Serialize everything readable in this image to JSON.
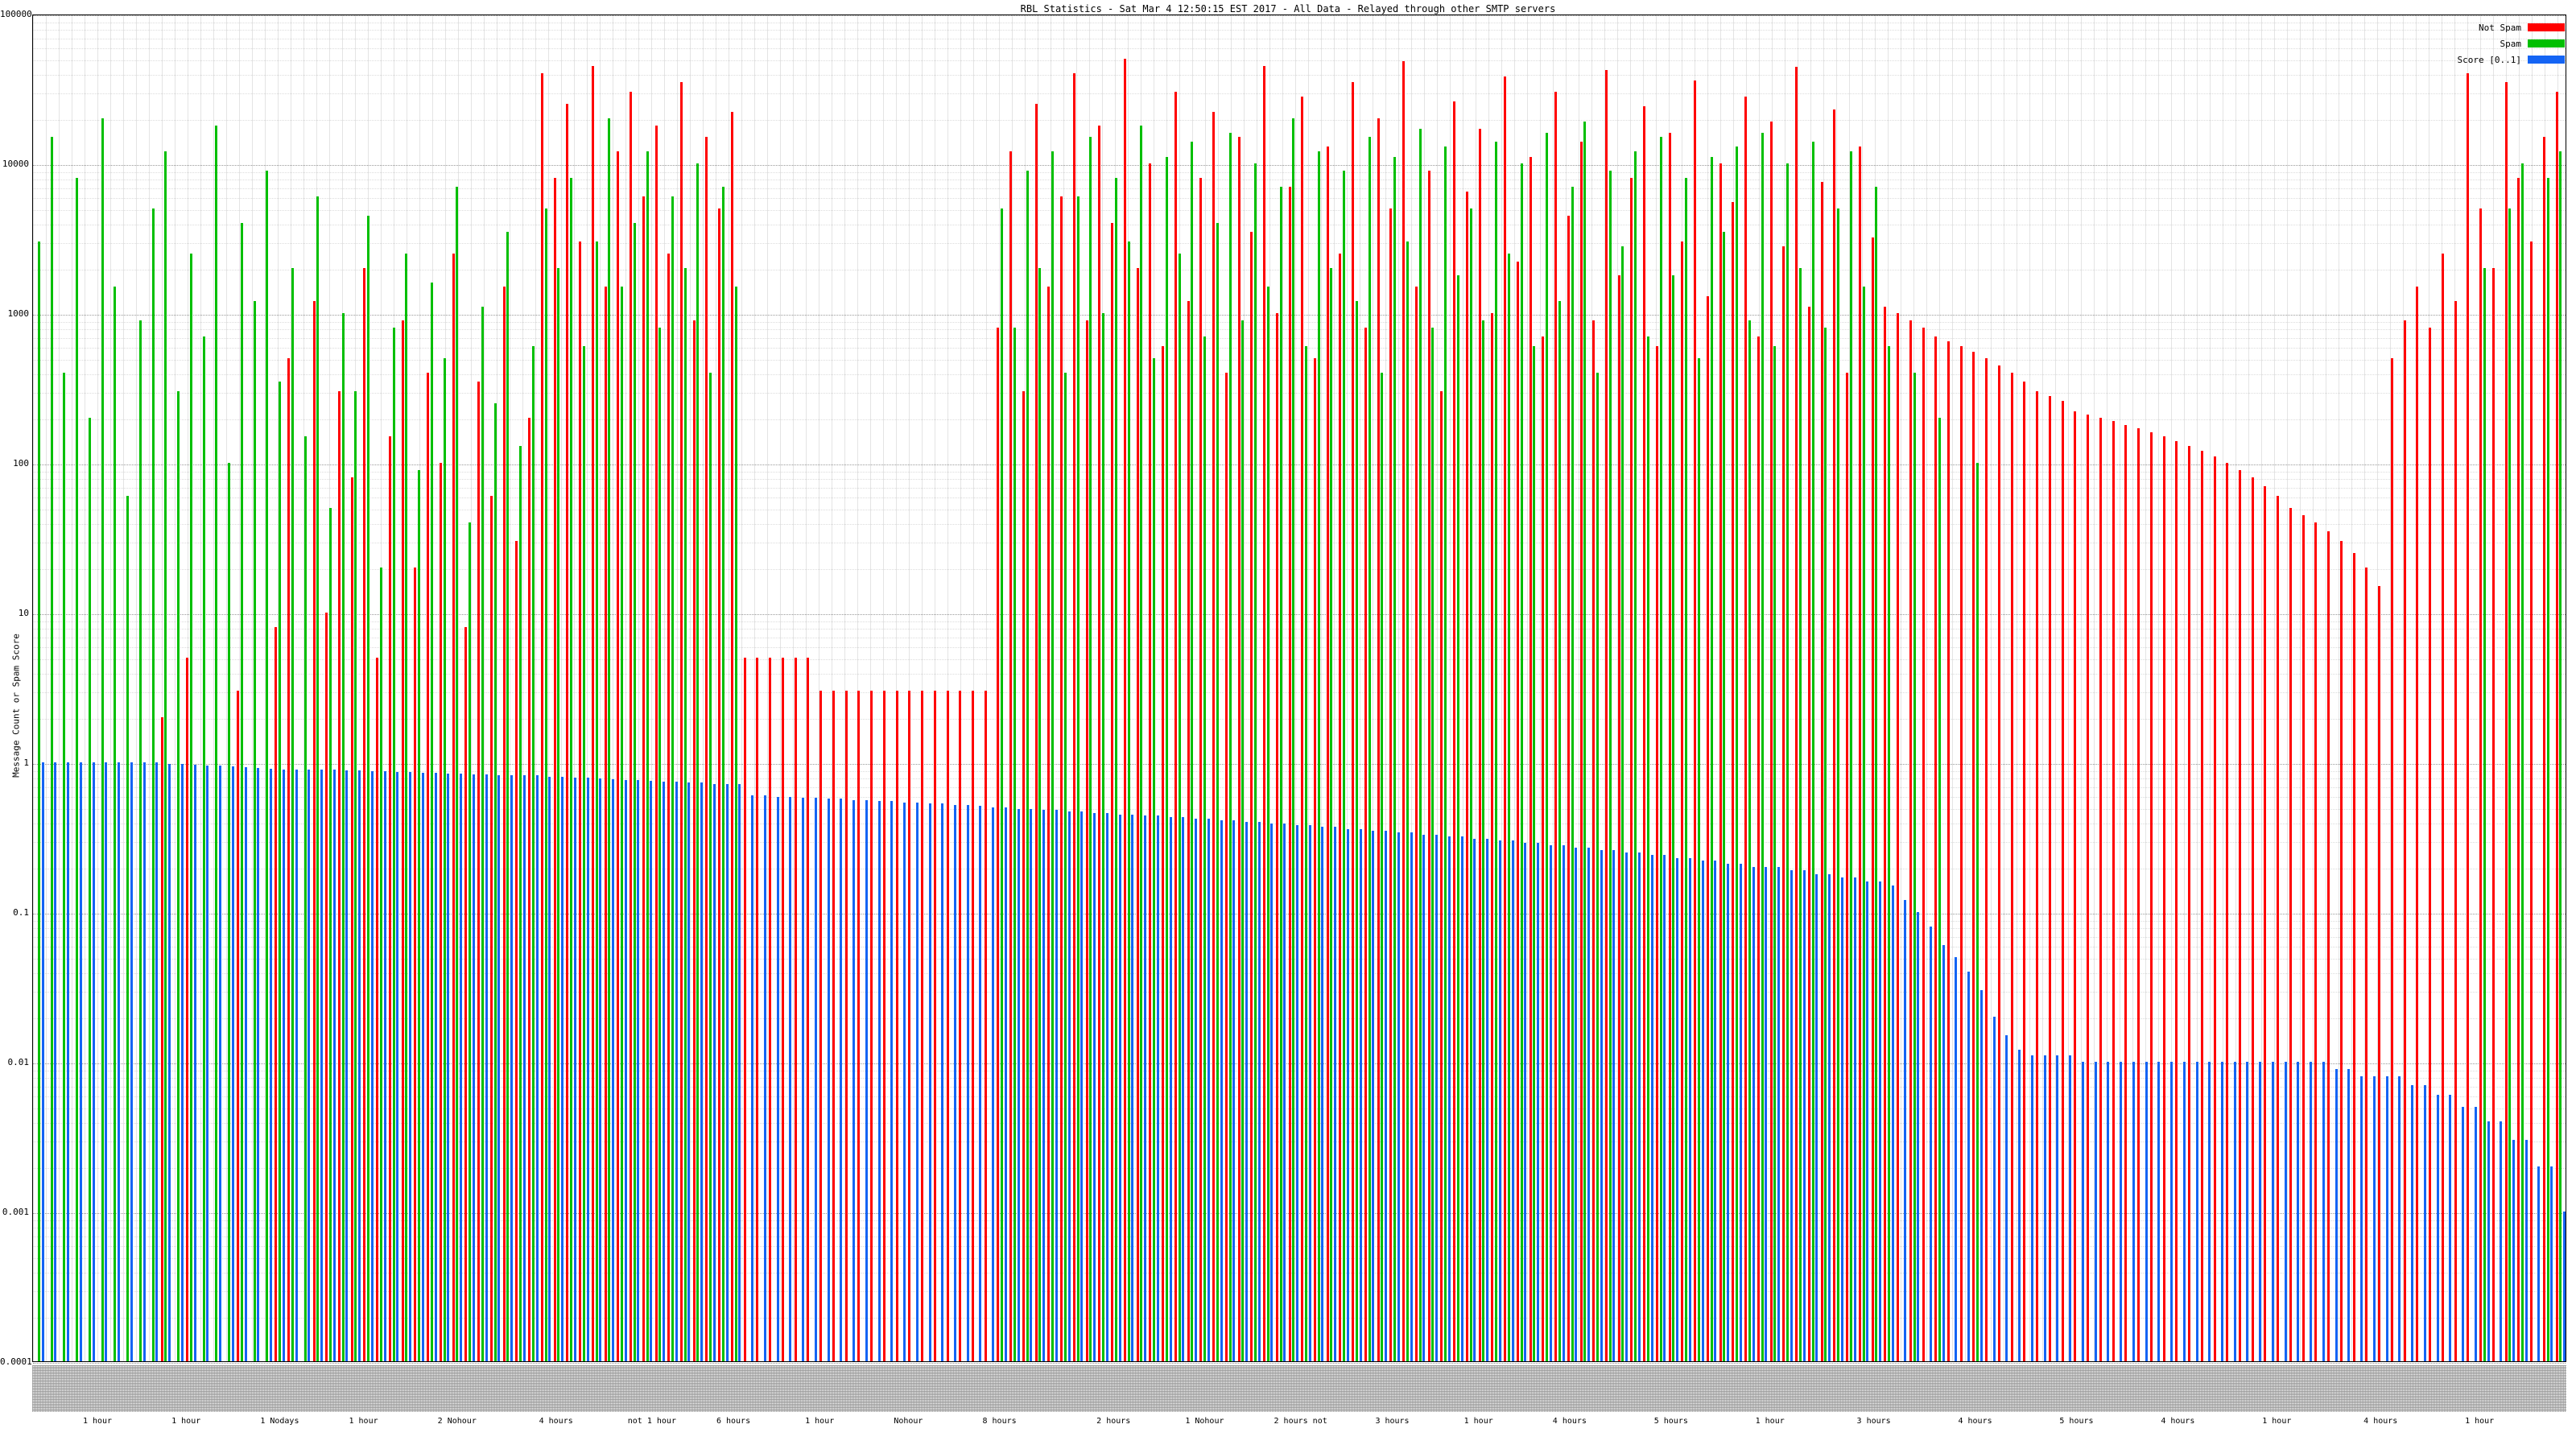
{
  "chart": {
    "title": "RBL Statistics - Sat Mar 4 12:50:15 EST 2017 - All Data - Relayed through other SMTP servers",
    "ylabel": "Message Count or Spam Score"
  },
  "chart_data": {
    "type": "bar",
    "bar_style": "impulses",
    "title": "RBL Statistics - Sat Mar 4 12:50:15 EST 2017 - All Data - Relayed through other SMTP servers",
    "xlabel": "",
    "ylabel": "Message Count or Spam Score",
    "yscale": "log",
    "ylim": [
      0.0001,
      100000
    ],
    "ytick_labels": [
      "100000",
      "10000",
      "1000",
      "100",
      "10",
      "1",
      "0.1",
      "0.01",
      "0.001",
      "0.0001"
    ],
    "grid": true,
    "legend_position": "top-right",
    "x_labels_note": "hundreds of tiny illegible RBL hostname labels along the x-axis, sorted by descending score",
    "legend": [
      {
        "name": "Not Spam",
        "color": "#ff0000"
      },
      {
        "name": "Spam",
        "color": "#00bf00"
      },
      {
        "name": "Score [0..1]",
        "color": "#1464f4"
      }
    ],
    "series": [
      {
        "name": "Not Spam",
        "color": "#ff0000",
        "values": [
          0,
          0,
          0,
          0,
          0,
          0,
          0,
          0,
          0,
          0,
          2,
          0,
          5,
          0,
          0,
          0,
          3,
          0,
          0,
          8,
          500,
          0,
          1200,
          10,
          300,
          80,
          2000,
          5,
          150,
          900,
          20,
          400,
          100,
          2500,
          8,
          350,
          60,
          1500,
          30,
          200,
          40000,
          8000,
          25000,
          3000,
          45000,
          1500,
          12000,
          30000,
          6000,
          18000,
          2500,
          35000,
          900,
          15000,
          5000,
          22000,
          5,
          5,
          5,
          5,
          5,
          5,
          3,
          3,
          3,
          3,
          3,
          3,
          3,
          3,
          3,
          3,
          3,
          3,
          3,
          3,
          800,
          12000,
          300,
          25000,
          1500,
          6000,
          40000,
          900,
          18000,
          4000,
          50000,
          2000,
          10000,
          600,
          30000,
          1200,
          8000,
          22000,
          400,
          15000,
          3500,
          45000,
          1000,
          7000,
          28000,
          500,
          13000,
          2500,
          35000,
          800,
          20000,
          5000,
          48000,
          1500,
          9000,
          300,
          26000,
          6500,
          17000,
          1000,
          38000,
          2200,
          11000,
          700,
          30000,
          4500,
          14000,
          900,
          42000,
          1800,
          8000,
          24000,
          600,
          16000,
          3000,
          36000,
          1300,
          10000,
          5500,
          28000,
          700,
          19000,
          2800,
          44000,
          1100,
          7500,
          23000,
          400,
          13000,
          3200,
          1100,
          1000,
          900,
          800,
          700,
          650,
          600,
          550,
          500,
          450,
          400,
          350,
          300,
          280,
          260,
          220,
          210,
          200,
          190,
          180,
          170,
          160,
          150,
          140,
          130,
          120,
          110,
          100,
          90,
          80,
          70,
          60,
          50,
          45,
          40,
          35,
          30,
          25,
          20,
          15,
          500,
          900,
          1500,
          800,
          2500,
          1200,
          40000,
          5000,
          2000,
          35000,
          8000,
          3000,
          15000,
          30000
        ]
      },
      {
        "name": "Spam",
        "color": "#00bf00",
        "values": [
          3000,
          15000,
          400,
          8000,
          200,
          20000,
          1500,
          60,
          900,
          5000,
          12000,
          300,
          2500,
          700,
          18000,
          100,
          4000,
          1200,
          9000,
          350,
          2000,
          150,
          6000,
          50,
          1000,
          300,
          4500,
          20,
          800,
          2500,
          90,
          1600,
          500,
          7000,
          40,
          1100,
          250,
          3500,
          130,
          600,
          5000,
          2000,
          8000,
          600,
          3000,
          20000,
          1500,
          4000,
          12000,
          800,
          6000,
          2000,
          10000,
          400,
          7000,
          1500,
          0,
          0,
          0,
          0,
          0,
          0,
          0,
          0,
          0,
          0,
          0,
          0,
          0,
          0,
          0,
          0,
          0,
          0,
          0,
          0,
          5000,
          800,
          9000,
          2000,
          12000,
          400,
          6000,
          15000,
          1000,
          8000,
          3000,
          18000,
          500,
          11000,
          2500,
          14000,
          700,
          4000,
          16000,
          900,
          10000,
          1500,
          7000,
          20000,
          600,
          12000,
          2000,
          9000,
          1200,
          15000,
          400,
          11000,
          3000,
          17000,
          800,
          13000,
          1800,
          5000,
          900,
          14000,
          2500,
          10000,
          600,
          16000,
          1200,
          7000,
          19000,
          400,
          9000,
          2800,
          12000,
          700,
          15000,
          1800,
          8000,
          500,
          11000,
          3500,
          13000,
          900,
          16000,
          600,
          10000,
          2000,
          14000,
          800,
          5000,
          12000,
          1500,
          7000,
          600,
          0,
          400,
          0,
          200,
          0,
          0,
          100,
          0,
          0,
          0,
          0,
          0,
          0,
          0,
          0,
          0,
          0,
          0,
          0,
          0,
          0,
          0,
          0,
          0,
          0,
          0,
          0,
          0,
          0,
          0,
          0,
          0,
          0,
          0,
          0,
          0,
          0,
          0,
          0,
          0,
          0,
          0,
          0,
          0,
          0,
          0,
          2000,
          0,
          5000,
          10000,
          0,
          8000,
          12000
        ]
      },
      {
        "name": "Score [0..1]",
        "color": "#1464f4",
        "values": [
          1.0,
          1.0,
          1.0,
          1.0,
          1.0,
          1.0,
          1.0,
          1.0,
          1.0,
          1.0,
          0.98,
          0.97,
          0.96,
          0.95,
          0.95,
          0.94,
          0.93,
          0.92,
          0.91,
          0.9,
          0.9,
          0.9,
          0.89,
          0.89,
          0.88,
          0.88,
          0.87,
          0.87,
          0.86,
          0.86,
          0.85,
          0.85,
          0.84,
          0.84,
          0.83,
          0.83,
          0.82,
          0.82,
          0.82,
          0.82,
          0.8,
          0.8,
          0.79,
          0.79,
          0.78,
          0.77,
          0.76,
          0.76,
          0.75,
          0.74,
          0.74,
          0.73,
          0.73,
          0.72,
          0.72,
          0.72,
          0.6,
          0.6,
          0.59,
          0.59,
          0.58,
          0.58,
          0.57,
          0.57,
          0.56,
          0.56,
          0.55,
          0.55,
          0.54,
          0.54,
          0.53,
          0.53,
          0.52,
          0.52,
          0.51,
          0.5,
          0.5,
          0.49,
          0.49,
          0.48,
          0.48,
          0.47,
          0.47,
          0.46,
          0.46,
          0.45,
          0.45,
          0.44,
          0.44,
          0.43,
          0.43,
          0.42,
          0.42,
          0.41,
          0.41,
          0.4,
          0.4,
          0.39,
          0.39,
          0.38,
          0.38,
          0.37,
          0.37,
          0.36,
          0.36,
          0.35,
          0.35,
          0.34,
          0.34,
          0.33,
          0.33,
          0.32,
          0.32,
          0.31,
          0.31,
          0.3,
          0.3,
          0.29,
          0.29,
          0.28,
          0.28,
          0.27,
          0.27,
          0.26,
          0.26,
          0.25,
          0.25,
          0.24,
          0.24,
          0.23,
          0.23,
          0.22,
          0.22,
          0.21,
          0.21,
          0.2,
          0.2,
          0.2,
          0.19,
          0.19,
          0.18,
          0.18,
          0.17,
          0.17,
          0.16,
          0.16,
          0.15,
          0.12,
          0.1,
          0.08,
          0.06,
          0.05,
          0.04,
          0.03,
          0.02,
          0.015,
          0.012,
          0.011,
          0.011,
          0.011,
          0.011,
          0.01,
          0.01,
          0.01,
          0.01,
          0.01,
          0.01,
          0.01,
          0.01,
          0.01,
          0.01,
          0.01,
          0.01,
          0.01,
          0.01,
          0.01,
          0.01,
          0.01,
          0.01,
          0.01,
          0.01,
          0.009,
          0.009,
          0.008,
          0.008,
          0.008,
          0.008,
          0.007,
          0.007,
          0.006,
          0.006,
          0.005,
          0.005,
          0.004,
          0.004,
          0.003,
          0.003,
          0.002,
          0.002,
          0.001
        ]
      }
    ],
    "x_sublabels": [
      {
        "pos": 0.02,
        "label": "1 hour"
      },
      {
        "pos": 0.055,
        "label": "1 hour"
      },
      {
        "pos": 0.09,
        "label": "1 Nodays"
      },
      {
        "pos": 0.125,
        "label": "1 hour"
      },
      {
        "pos": 0.16,
        "label": "2 Nohour"
      },
      {
        "pos": 0.2,
        "label": "4 hours"
      },
      {
        "pos": 0.235,
        "label": "not 1 hour"
      },
      {
        "pos": 0.27,
        "label": "6 hours"
      },
      {
        "pos": 0.305,
        "label": "1 hour"
      },
      {
        "pos": 0.34,
        "label": "Nohour"
      },
      {
        "pos": 0.375,
        "label": "8 hours"
      },
      {
        "pos": 0.42,
        "label": "2 hours"
      },
      {
        "pos": 0.455,
        "label": "1 Nohour"
      },
      {
        "pos": 0.49,
        "label": "2 hours not"
      },
      {
        "pos": 0.53,
        "label": "3 hours"
      },
      {
        "pos": 0.565,
        "label": "1 hour"
      },
      {
        "pos": 0.6,
        "label": "4 hours"
      },
      {
        "pos": 0.64,
        "label": "5 hours"
      },
      {
        "pos": 0.68,
        "label": "1 hour"
      },
      {
        "pos": 0.72,
        "label": "3 hours"
      },
      {
        "pos": 0.76,
        "label": "4 hours"
      },
      {
        "pos": 0.8,
        "label": "5 hours"
      },
      {
        "pos": 0.84,
        "label": "4 hours"
      },
      {
        "pos": 0.88,
        "label": "1 hour"
      },
      {
        "pos": 0.92,
        "label": "4 hours"
      },
      {
        "pos": 0.96,
        "label": "1 hour"
      }
    ]
  }
}
